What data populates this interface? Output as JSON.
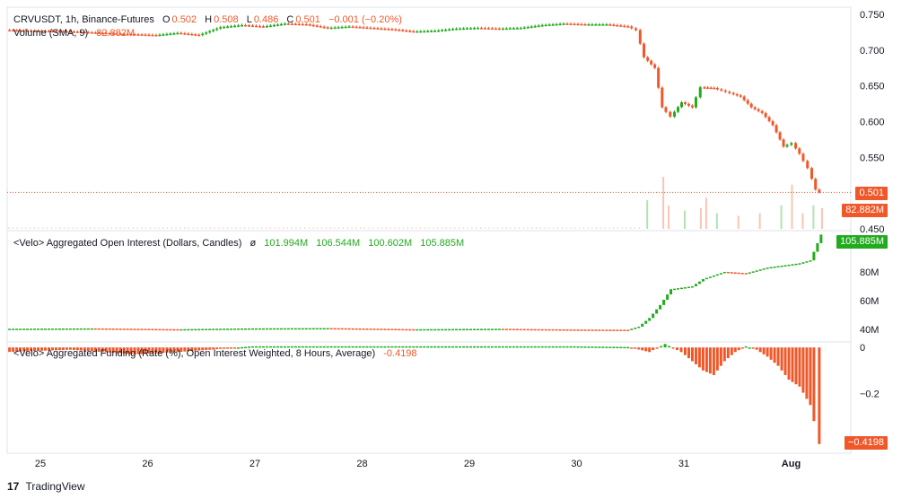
{
  "header": {
    "symbol": "CRVUSDT, 1h, Binance-Futures",
    "o_label": "O",
    "o_val": "0.502",
    "h_label": "H",
    "h_val": "0.508",
    "l_label": "L",
    "l_val": "0.486",
    "c_label": "C",
    "c_val": "0.501",
    "change": "−0.001 (−0.20%)",
    "volume_label": "Volume (SMA, 9)",
    "volume_val": "82.882M"
  },
  "oi_legend": {
    "title": "<Velo> Aggregated Open Interest (Dollars, Candles)",
    "sym": "ø",
    "o": "101.994M",
    "h": "106.544M",
    "l": "100.602M",
    "c": "105.885M"
  },
  "funding_legend": {
    "title": "<Velo> Aggregated Funding (Rate (%), Open Interest Weighted, 8 Hours, Average)",
    "value": "-0.4198"
  },
  "tags": {
    "price": "0.501",
    "volume": "82.882M",
    "oi": "105.885M",
    "funding": "−0.4198"
  },
  "footer": {
    "logo": "17",
    "brand": "TradingView"
  },
  "colors": {
    "up": "#22ab1f",
    "down": "#f0582a",
    "grid": "#e0e3eb",
    "text": "#131722"
  },
  "chart_data": [
    {
      "type": "candlestick",
      "title": "CRVUSDT, 1h, Binance-Futures",
      "x_ticks": [
        "25",
        "26",
        "27",
        "28",
        "29",
        "30",
        "31",
        "Aug"
      ],
      "y_ticks": [
        "0.750",
        "0.700",
        "0.650",
        "0.600",
        "0.550",
        "0.500",
        "0.450"
      ],
      "ylim": [
        0.45,
        0.76
      ],
      "series": [
        {
          "name": "Price",
          "points": [
            [
              24.7,
              0.728
            ],
            [
              25.0,
              0.727
            ],
            [
              25.3,
              0.726
            ],
            [
              25.6,
              0.724
            ],
            [
              25.9,
              0.722
            ],
            [
              26.1,
              0.721
            ],
            [
              26.3,
              0.724
            ],
            [
              26.5,
              0.721
            ],
            [
              26.7,
              0.732
            ],
            [
              26.9,
              0.735
            ],
            [
              27.1,
              0.733
            ],
            [
              27.3,
              0.737
            ],
            [
              27.5,
              0.736
            ],
            [
              27.7,
              0.731
            ],
            [
              27.9,
              0.733
            ],
            [
              28.1,
              0.731
            ],
            [
              28.3,
              0.729
            ],
            [
              28.5,
              0.726
            ],
            [
              28.7,
              0.727
            ],
            [
              28.9,
              0.73
            ],
            [
              29.1,
              0.731
            ],
            [
              29.3,
              0.73
            ],
            [
              29.5,
              0.731
            ],
            [
              29.7,
              0.735
            ],
            [
              29.9,
              0.737
            ],
            [
              30.1,
              0.736
            ],
            [
              30.3,
              0.736
            ],
            [
              30.5,
              0.733
            ],
            [
              30.58,
              0.728
            ],
            [
              30.65,
              0.69
            ],
            [
              30.75,
              0.675
            ],
            [
              30.82,
              0.62
            ],
            [
              30.9,
              0.607
            ],
            [
              31.0,
              0.627
            ],
            [
              31.1,
              0.62
            ],
            [
              31.18,
              0.648
            ],
            [
              31.3,
              0.647
            ],
            [
              31.45,
              0.64
            ],
            [
              31.55,
              0.635
            ],
            [
              31.65,
              0.62
            ],
            [
              31.75,
              0.612
            ],
            [
              31.85,
              0.595
            ],
            [
              31.95,
              0.565
            ],
            [
              32.03,
              0.57
            ],
            [
              32.1,
              0.555
            ],
            [
              32.18,
              0.535
            ],
            [
              32.25,
              0.505
            ],
            [
              32.3,
              0.501
            ]
          ]
        }
      ]
    },
    {
      "type": "bar",
      "title": "Volume (SMA, 9)",
      "series": [
        {
          "name": "Volume",
          "points": [
            [
              30.65,
              0.55
            ],
            [
              30.8,
              1.0
            ],
            [
              30.85,
              0.45
            ],
            [
              31.0,
              0.35
            ],
            [
              31.15,
              0.4
            ],
            [
              31.2,
              0.6
            ],
            [
              31.3,
              0.3
            ],
            [
              31.5,
              0.25
            ],
            [
              31.7,
              0.3
            ],
            [
              31.9,
              0.45
            ],
            [
              32.0,
              0.85
            ],
            [
              32.1,
              0.3
            ],
            [
              32.2,
              0.45
            ],
            [
              32.28,
              0.4
            ]
          ]
        }
      ]
    },
    {
      "type": "candlestick",
      "title": "<Velo> Aggregated Open Interest (Dollars, Candles)",
      "y_ticks": [
        "100M",
        "80M",
        "60M",
        "40M"
      ],
      "ylim": [
        32,
        108
      ],
      "series": [
        {
          "name": "Open Interest",
          "points": [
            [
              24.7,
              40.5
            ],
            [
              25.5,
              40.8
            ],
            [
              26.3,
              40.2
            ],
            [
              27.0,
              40.8
            ],
            [
              27.7,
              41.0
            ],
            [
              28.5,
              40.2
            ],
            [
              29.3,
              40.5
            ],
            [
              30.0,
              40.0
            ],
            [
              30.5,
              39.8
            ],
            [
              30.6,
              42.0
            ],
            [
              30.7,
              48.0
            ],
            [
              30.8,
              57.0
            ],
            [
              30.9,
              68.0
            ],
            [
              31.1,
              70.0
            ],
            [
              31.2,
              75.0
            ],
            [
              31.4,
              80.0
            ],
            [
              31.6,
              79.0
            ],
            [
              31.8,
              83.0
            ],
            [
              32.0,
              85.0
            ],
            [
              32.1,
              86.0
            ],
            [
              32.2,
              88.0
            ],
            [
              32.3,
              105.9
            ]
          ]
        }
      ]
    },
    {
      "type": "bar",
      "title": "<Velo> Aggregated Funding (Rate (%), Open Interest Weighted, 8 Hours, Average)",
      "y_ticks": [
        "0",
        "−0.2",
        "−0.4"
      ],
      "ylim": [
        -0.44,
        0.02
      ],
      "series": [
        {
          "name": "Funding",
          "points": [
            [
              24.7,
              -0.02
            ],
            [
              25.0,
              -0.015
            ],
            [
              25.3,
              -0.01
            ],
            [
              25.6,
              -0.02
            ],
            [
              25.9,
              -0.03
            ],
            [
              26.1,
              -0.025
            ],
            [
              26.3,
              -0.02
            ],
            [
              26.6,
              -0.01
            ],
            [
              27.0,
              0.005
            ],
            [
              27.5,
              0.005
            ],
            [
              28.0,
              0.005
            ],
            [
              28.5,
              0.005
            ],
            [
              29.0,
              0.005
            ],
            [
              29.5,
              0.005
            ],
            [
              30.0,
              0.005
            ],
            [
              30.5,
              0.002
            ],
            [
              30.7,
              -0.02
            ],
            [
              30.85,
              0.015
            ],
            [
              31.0,
              -0.02
            ],
            [
              31.1,
              -0.06
            ],
            [
              31.2,
              -0.1
            ],
            [
              31.3,
              -0.12
            ],
            [
              31.4,
              -0.06
            ],
            [
              31.5,
              -0.02
            ],
            [
              31.6,
              0.005
            ],
            [
              31.7,
              -0.01
            ],
            [
              31.8,
              -0.04
            ],
            [
              31.9,
              -0.08
            ],
            [
              32.0,
              -0.14
            ],
            [
              32.1,
              -0.17
            ],
            [
              32.2,
              -0.25
            ],
            [
              32.25,
              -0.32
            ],
            [
              32.3,
              -0.4198
            ]
          ]
        }
      ]
    }
  ]
}
